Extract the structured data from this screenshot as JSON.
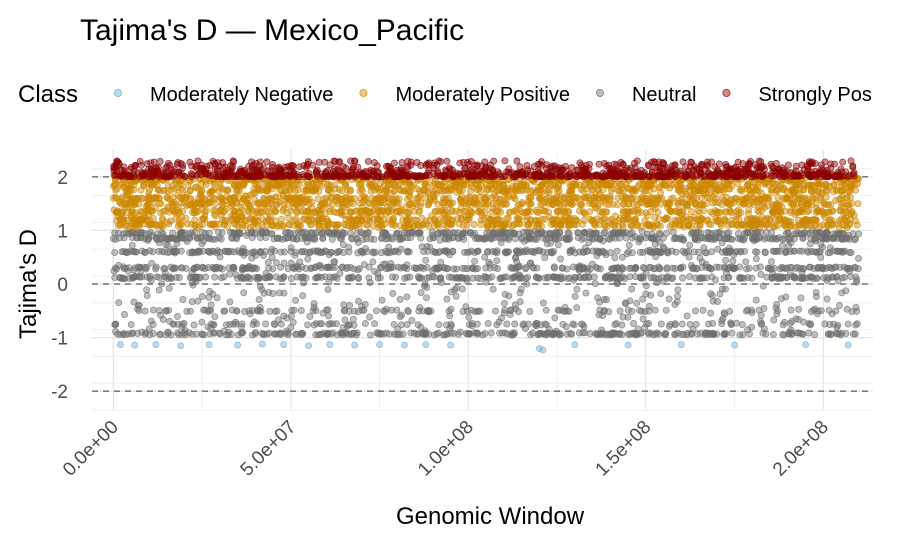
{
  "chart_data": {
    "type": "scatter",
    "title": "Tajima's D — Mexico_Pacific",
    "xlabel": "Genomic Window",
    "ylabel": "Tajima's D",
    "xlim": [
      -6000000,
      214000000
    ],
    "ylim": [
      -2.35,
      2.5
    ],
    "x_ticks": [
      0,
      50000000,
      100000000,
      150000000,
      200000000
    ],
    "x_tick_labels": [
      "0.0e+00",
      "5.0e+07",
      "1.0e+08",
      "1.5e+08",
      "2.0e+08"
    ],
    "y_ticks": [
      -2,
      -1,
      0,
      1,
      2
    ],
    "y_tick_labels": [
      "-2",
      "-1",
      "0",
      "1",
      "2"
    ],
    "reference_lines": [
      -2,
      0,
      2
    ],
    "grid": true,
    "legend": {
      "title": "Class",
      "placement": "top",
      "entries": [
        "Moderately Negative",
        "Moderately Positive",
        "Neutral",
        "Strongly Pos"
      ]
    },
    "x_range_of_windows": [
      0,
      210000000
    ],
    "series": [
      {
        "name": "Moderately Negative",
        "color": "#6baed6",
        "value_range": [
          -1.25,
          -1.1
        ],
        "points": [
          [
            2000000,
            -1.13
          ],
          [
            6000000,
            -1.14
          ],
          [
            12000000,
            -1.13
          ],
          [
            19000000,
            -1.15
          ],
          [
            27000000,
            -1.13
          ],
          [
            35000000,
            -1.14
          ],
          [
            42000000,
            -1.12
          ],
          [
            48000000,
            -1.13
          ],
          [
            55000000,
            -1.15
          ],
          [
            61000000,
            -1.13
          ],
          [
            68000000,
            -1.14
          ],
          [
            75000000,
            -1.13
          ],
          [
            82000000,
            -1.14
          ],
          [
            88000000,
            -1.13
          ],
          [
            95000000,
            -1.14
          ],
          [
            120000000,
            -1.2
          ],
          [
            121000000,
            -1.23
          ],
          [
            130000000,
            -1.13
          ],
          [
            145000000,
            -1.14
          ],
          [
            160000000,
            -1.13
          ],
          [
            175000000,
            -1.14
          ],
          [
            195000000,
            -1.13
          ],
          [
            207000000,
            -1.14
          ]
        ]
      },
      {
        "name": "Moderately Positive",
        "color": "#cc8800",
        "value_range": [
          1.05,
          1.98
        ]
      },
      {
        "name": "Neutral",
        "color": "#6e6e6e",
        "value_range": [
          -0.95,
          1.0
        ],
        "dense_levels": [
          -0.93,
          0.12,
          0.3,
          0.6,
          0.85,
          0.95
        ],
        "sparse_levels": [
          -0.5,
          -0.75
        ]
      },
      {
        "name": "Strongly Pos",
        "color": "#8b0000",
        "value_range": [
          2.0,
          2.3
        ]
      }
    ]
  }
}
